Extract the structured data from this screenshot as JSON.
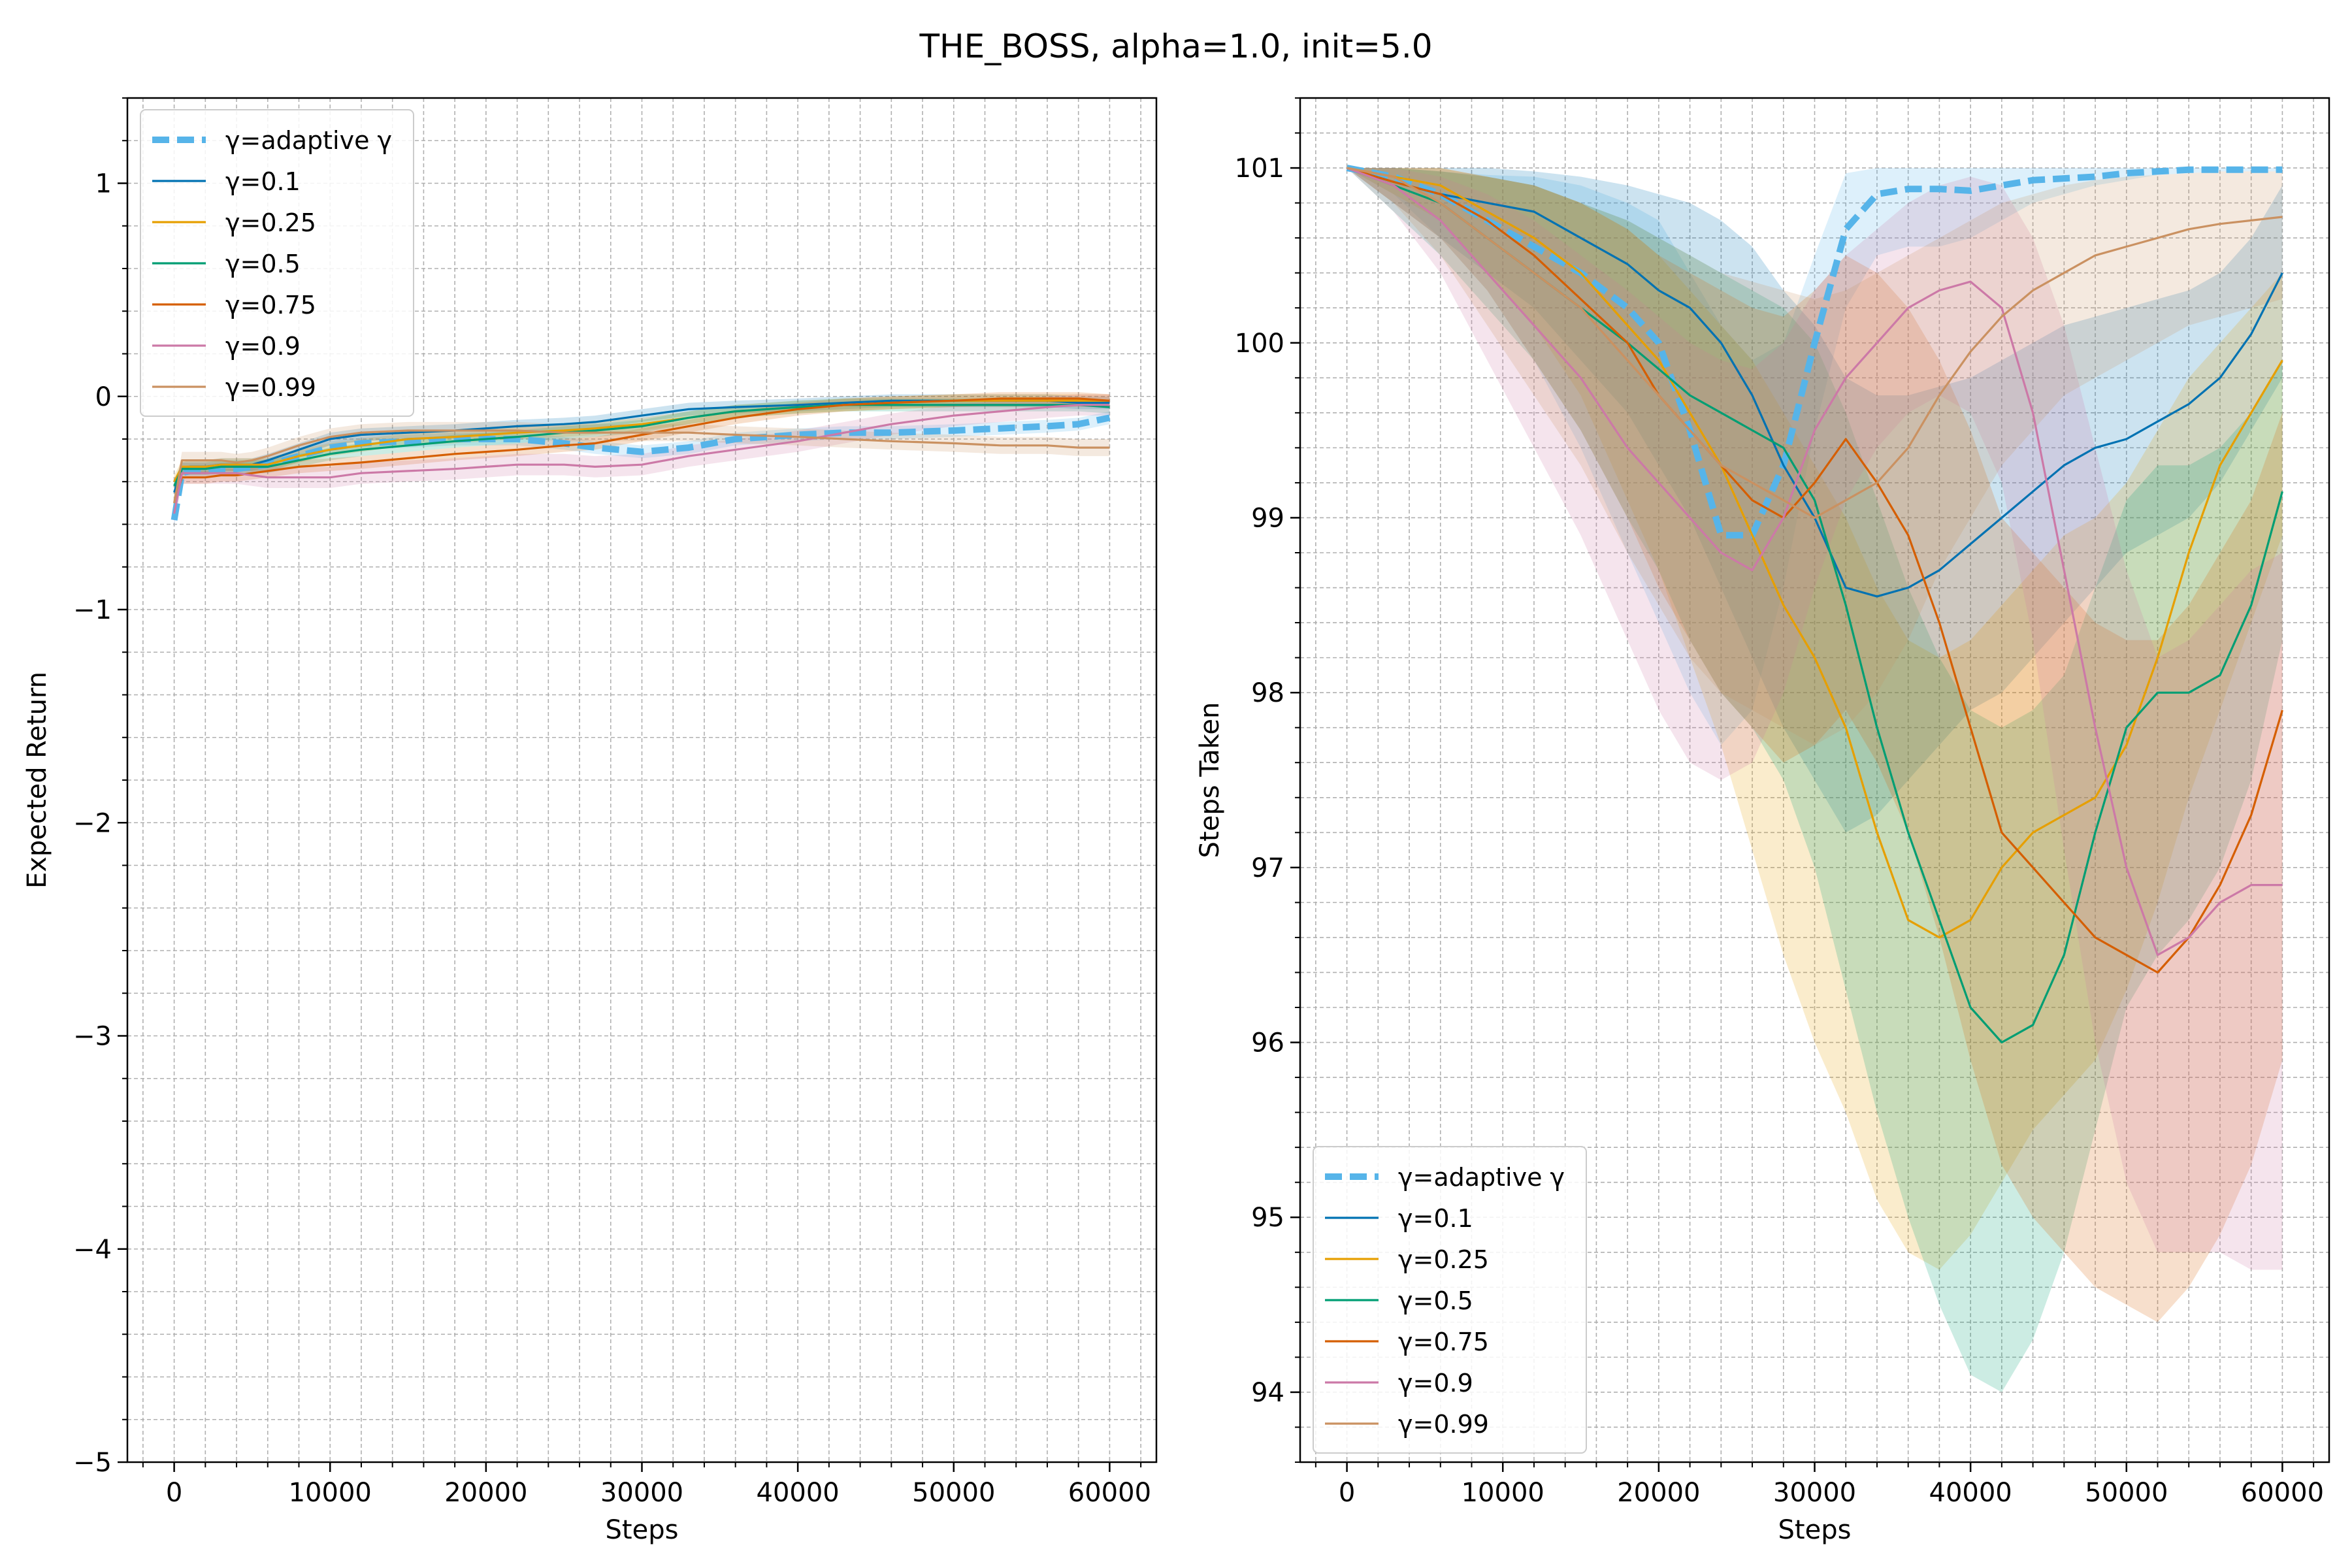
{
  "figure": {
    "title": "THE_BOSS, alpha=1.0, init=5.0"
  },
  "legend_entries": [
    "γ=adaptive γ",
    "γ=0.1",
    "γ=0.25",
    "γ=0.5",
    "γ=0.75",
    "γ=0.9",
    "γ=0.99"
  ],
  "colors": {
    "adaptive": "#56b4e9",
    "g0.1": "#0072b2",
    "g0.25": "#e69f00",
    "g0.5": "#009e73",
    "g0.75": "#d55e00",
    "g0.9": "#cc79a7",
    "g0.99": "#ca9161"
  },
  "chart_data": [
    {
      "type": "line",
      "title": "",
      "xlabel": "Steps",
      "ylabel": "Expected Return",
      "xlim": [
        -3000,
        63000
      ],
      "ylim": [
        -5,
        1.4
      ],
      "xticks": [
        0,
        10000,
        20000,
        30000,
        40000,
        50000,
        60000
      ],
      "yticks": [
        1,
        0,
        -1,
        -2,
        -3,
        -4,
        -5
      ],
      "ytick_labels": [
        "1",
        "0",
        "−1",
        "−2",
        "−3",
        "−4",
        "−5"
      ],
      "grid": true,
      "legend": "top-left",
      "x": [
        0,
        500,
        1000,
        2000,
        3000,
        4000,
        5000,
        6000,
        8000,
        10000,
        12000,
        15000,
        18000,
        20000,
        22000,
        25000,
        27000,
        30000,
        33000,
        36000,
        40000,
        43000,
        46000,
        50000,
        53000,
        56000,
        58000,
        60000
      ],
      "series": [
        {
          "name": "γ=adaptive γ",
          "key": "adaptive",
          "dashed": true,
          "band": 0.03,
          "values": [
            -0.58,
            -0.36,
            -0.35,
            -0.35,
            -0.34,
            -0.34,
            -0.33,
            -0.32,
            -0.28,
            -0.24,
            -0.22,
            -0.21,
            -0.2,
            -0.2,
            -0.2,
            -0.22,
            -0.24,
            -0.26,
            -0.24,
            -0.2,
            -0.18,
            -0.17,
            -0.17,
            -0.16,
            -0.15,
            -0.14,
            -0.13,
            -0.1
          ]
        },
        {
          "name": "γ=0.1",
          "key": "g0.1",
          "band": 0.03,
          "values": [
            -0.45,
            -0.34,
            -0.33,
            -0.33,
            -0.32,
            -0.32,
            -0.32,
            -0.3,
            -0.25,
            -0.2,
            -0.18,
            -0.17,
            -0.16,
            -0.15,
            -0.14,
            -0.13,
            -0.12,
            -0.09,
            -0.06,
            -0.05,
            -0.04,
            -0.03,
            -0.02,
            -0.02,
            -0.02,
            -0.02,
            -0.03,
            -0.03
          ]
        },
        {
          "name": "γ=0.25",
          "key": "g0.25",
          "band": 0.03,
          "values": [
            -0.4,
            -0.33,
            -0.33,
            -0.33,
            -0.32,
            -0.32,
            -0.32,
            -0.32,
            -0.28,
            -0.25,
            -0.23,
            -0.2,
            -0.19,
            -0.18,
            -0.17,
            -0.16,
            -0.15,
            -0.13,
            -0.1,
            -0.07,
            -0.05,
            -0.04,
            -0.03,
            -0.02,
            -0.02,
            -0.02,
            -0.02,
            -0.02
          ]
        },
        {
          "name": "γ=0.5",
          "key": "g0.5",
          "band": 0.03,
          "values": [
            -0.42,
            -0.34,
            -0.34,
            -0.34,
            -0.33,
            -0.33,
            -0.33,
            -0.33,
            -0.3,
            -0.27,
            -0.25,
            -0.23,
            -0.21,
            -0.2,
            -0.19,
            -0.17,
            -0.16,
            -0.14,
            -0.1,
            -0.07,
            -0.05,
            -0.04,
            -0.04,
            -0.04,
            -0.04,
            -0.04,
            -0.04,
            -0.05
          ]
        },
        {
          "name": "γ=0.75",
          "key": "g0.75",
          "band": 0.03,
          "values": [
            -0.5,
            -0.38,
            -0.38,
            -0.38,
            -0.37,
            -0.37,
            -0.36,
            -0.35,
            -0.33,
            -0.32,
            -0.31,
            -0.29,
            -0.27,
            -0.26,
            -0.25,
            -0.23,
            -0.22,
            -0.18,
            -0.14,
            -0.1,
            -0.06,
            -0.04,
            -0.03,
            -0.02,
            -0.01,
            -0.01,
            -0.01,
            -0.02
          ]
        },
        {
          "name": "γ=0.9",
          "key": "g0.9",
          "band": 0.05,
          "values": [
            -0.55,
            -0.36,
            -0.36,
            -0.36,
            -0.36,
            -0.36,
            -0.37,
            -0.38,
            -0.38,
            -0.38,
            -0.36,
            -0.35,
            -0.34,
            -0.33,
            -0.32,
            -0.32,
            -0.33,
            -0.32,
            -0.28,
            -0.25,
            -0.21,
            -0.17,
            -0.13,
            -0.09,
            -0.07,
            -0.05,
            -0.04,
            -0.04
          ]
        },
        {
          "name": "γ=0.99",
          "key": "g0.99",
          "band": 0.04,
          "values": [
            -0.5,
            -0.3,
            -0.3,
            -0.3,
            -0.3,
            -0.31,
            -0.3,
            -0.28,
            -0.23,
            -0.19,
            -0.17,
            -0.16,
            -0.16,
            -0.16,
            -0.16,
            -0.17,
            -0.17,
            -0.17,
            -0.17,
            -0.18,
            -0.19,
            -0.2,
            -0.21,
            -0.22,
            -0.23,
            -0.23,
            -0.24,
            -0.24
          ]
        }
      ]
    },
    {
      "type": "line",
      "title": "",
      "xlabel": "Steps",
      "ylabel": "Steps Taken",
      "xlim": [
        -3000,
        63000
      ],
      "ylim": [
        93.6,
        101.4
      ],
      "xticks": [
        0,
        10000,
        20000,
        30000,
        40000,
        50000,
        60000
      ],
      "yticks": [
        94,
        95,
        96,
        97,
        98,
        99,
        100,
        101
      ],
      "ytick_labels": [
        "94",
        "95",
        "96",
        "97",
        "98",
        "99",
        "100",
        "101"
      ],
      "grid": true,
      "legend": "bottom-left",
      "x": [
        0,
        3000,
        6000,
        9000,
        12000,
        15000,
        18000,
        20000,
        22000,
        24000,
        26000,
        28000,
        30000,
        32000,
        34000,
        36000,
        38000,
        40000,
        42000,
        44000,
        46000,
        48000,
        50000,
        52000,
        54000,
        56000,
        58000,
        60000
      ],
      "series": [
        {
          "name": "γ=adaptive γ",
          "key": "adaptive",
          "dashed": true,
          "values": [
            101,
            100.95,
            100.85,
            100.7,
            100.55,
            100.4,
            100.2,
            100.0,
            99.5,
            98.9,
            98.9,
            99.3,
            100.0,
            100.65,
            100.85,
            100.88,
            100.88,
            100.87,
            100.9,
            100.93,
            100.94,
            100.95,
            100.97,
            100.98,
            100.99,
            100.99,
            100.99,
            100.99
          ],
          "lower": [
            101,
            100.85,
            100.6,
            100.3,
            99.9,
            99.4,
            98.8,
            98.4,
            98.0,
            97.7,
            97.9,
            98.6,
            99.5,
            100.2,
            100.5,
            100.55,
            100.55,
            100.6,
            100.7,
            100.8,
            100.85,
            100.9,
            100.93,
            100.96,
            100.97,
            100.98,
            100.98,
            100.98
          ],
          "upper": [
            101,
            101.0,
            100.98,
            100.96,
            100.95,
            100.9,
            100.8,
            100.7,
            100.4,
            100.1,
            99.9,
            100.0,
            100.5,
            100.97,
            101.0,
            101.0,
            101.0,
            101.0,
            101.0,
            101.0,
            101.0,
            101.0,
            101.0,
            101.0,
            101.0,
            101.0,
            101.0,
            101.0
          ]
        },
        {
          "name": "γ=0.1",
          "key": "g0.1",
          "dashed": false,
          "values": [
            101,
            100.92,
            100.85,
            100.8,
            100.75,
            100.6,
            100.45,
            100.3,
            100.2,
            100.0,
            99.7,
            99.3,
            99.0,
            98.6,
            98.55,
            98.6,
            98.7,
            98.85,
            99.0,
            99.15,
            99.3,
            99.4,
            99.45,
            99.55,
            99.65,
            99.8,
            100.05,
            100.4
          ],
          "lower": [
            101,
            100.8,
            100.6,
            100.4,
            100.2,
            99.9,
            99.6,
            99.3,
            99.0,
            98.6,
            98.2,
            97.8,
            97.5,
            97.2,
            97.3,
            97.5,
            97.7,
            97.9,
            98.0,
            98.2,
            98.4,
            98.6,
            98.8,
            98.9,
            99.0,
            99.2,
            99.5,
            99.8
          ],
          "upper": [
            101,
            101.0,
            101.0,
            101.0,
            100.98,
            100.95,
            100.9,
            100.85,
            100.8,
            100.7,
            100.55,
            100.3,
            100.1,
            99.8,
            99.7,
            99.7,
            99.75,
            99.8,
            99.9,
            100.0,
            100.1,
            100.15,
            100.2,
            100.25,
            100.3,
            100.4,
            100.6,
            100.9
          ]
        },
        {
          "name": "γ=0.25",
          "key": "g0.25",
          "dashed": false,
          "values": [
            101,
            100.95,
            100.9,
            100.75,
            100.6,
            100.4,
            100.1,
            99.9,
            99.6,
            99.3,
            98.9,
            98.5,
            98.2,
            97.8,
            97.2,
            96.7,
            96.6,
            96.7,
            97.0,
            97.2,
            97.3,
            97.4,
            97.7,
            98.2,
            98.8,
            99.3,
            99.6,
            99.9
          ],
          "lower": [
            101,
            100.85,
            100.7,
            100.4,
            100.1,
            99.7,
            99.1,
            98.7,
            98.2,
            97.7,
            97.1,
            96.5,
            96.0,
            95.6,
            95.1,
            94.8,
            94.7,
            94.9,
            95.2,
            95.5,
            95.7,
            95.9,
            96.3,
            96.8,
            97.4,
            97.9,
            98.4,
            98.9
          ],
          "upper": [
            101,
            101.0,
            101.0,
            100.95,
            100.9,
            100.8,
            100.65,
            100.5,
            100.3,
            100.1,
            99.9,
            99.6,
            99.3,
            99.0,
            98.6,
            98.3,
            98.2,
            98.3,
            98.5,
            98.7,
            98.9,
            99.0,
            99.2,
            99.5,
            99.8,
            100.0,
            100.2,
            100.4
          ]
        },
        {
          "name": "γ=0.5",
          "key": "g0.5",
          "dashed": false,
          "values": [
            101,
            100.9,
            100.8,
            100.6,
            100.4,
            100.2,
            100.0,
            99.85,
            99.7,
            99.6,
            99.5,
            99.4,
            99.1,
            98.5,
            97.8,
            97.2,
            96.7,
            96.2,
            96.0,
            96.1,
            96.5,
            97.2,
            97.8,
            98.0,
            98.0,
            98.1,
            98.5,
            99.15
          ],
          "lower": [
            101,
            100.75,
            100.5,
            100.2,
            99.9,
            99.5,
            99.0,
            98.7,
            98.3,
            98.0,
            97.8,
            97.5,
            97.0,
            96.3,
            95.6,
            95.0,
            94.5,
            94.1,
            94.0,
            94.3,
            94.8,
            95.5,
            96.2,
            96.5,
            96.7,
            97.0,
            97.5,
            98.3
          ],
          "upper": [
            101,
            101.0,
            100.98,
            100.95,
            100.9,
            100.8,
            100.7,
            100.6,
            100.5,
            100.4,
            100.3,
            100.2,
            100.0,
            99.6,
            99.1,
            98.6,
            98.2,
            97.9,
            97.8,
            97.9,
            98.1,
            98.6,
            99.1,
            99.3,
            99.3,
            99.4,
            99.6,
            99.9
          ]
        },
        {
          "name": "γ=0.75",
          "key": "g0.75",
          "dashed": false,
          "values": [
            101,
            100.92,
            100.85,
            100.7,
            100.5,
            100.25,
            100.0,
            99.7,
            99.5,
            99.3,
            99.1,
            99.0,
            99.2,
            99.45,
            99.2,
            98.9,
            98.4,
            97.8,
            97.2,
            97.0,
            96.8,
            96.6,
            96.5,
            96.4,
            96.6,
            96.9,
            97.3,
            97.9
          ],
          "lower": [
            101,
            100.8,
            100.6,
            100.3,
            99.9,
            99.5,
            99.0,
            98.6,
            98.3,
            98.0,
            97.8,
            97.6,
            97.7,
            97.9,
            97.6,
            97.2,
            96.6,
            95.9,
            95.3,
            95.0,
            94.8,
            94.6,
            94.5,
            94.4,
            94.6,
            94.9,
            95.3,
            95.9
          ],
          "upper": [
            101,
            101.0,
            101.0,
            100.95,
            100.9,
            100.8,
            100.65,
            100.5,
            100.4,
            100.3,
            100.2,
            100.15,
            100.3,
            100.5,
            100.4,
            100.2,
            99.9,
            99.5,
            99.0,
            98.8,
            98.6,
            98.4,
            98.3,
            98.3,
            98.5,
            98.8,
            99.1,
            99.6
          ]
        },
        {
          "name": "γ=0.9",
          "key": "g0.9",
          "dashed": false,
          "values": [
            101,
            100.9,
            100.7,
            100.4,
            100.1,
            99.8,
            99.4,
            99.2,
            99.0,
            98.8,
            98.7,
            99.0,
            99.5,
            99.8,
            100.0,
            100.2,
            100.3,
            100.35,
            100.2,
            99.6,
            98.7,
            97.8,
            97.0,
            96.5,
            96.6,
            96.8,
            96.9,
            96.9
          ],
          "lower": [
            101,
            100.75,
            100.4,
            99.9,
            99.4,
            98.9,
            98.3,
            97.9,
            97.6,
            97.5,
            97.6,
            98.0,
            98.6,
            99.1,
            99.4,
            99.6,
            99.7,
            99.6,
            99.2,
            98.3,
            97.1,
            96.0,
            95.2,
            94.8,
            94.8,
            94.8,
            94.7,
            94.7
          ],
          "upper": [
            101,
            101.0,
            100.95,
            100.85,
            100.7,
            100.5,
            100.3,
            100.15,
            100.0,
            99.9,
            99.85,
            100.0,
            100.3,
            100.5,
            100.65,
            100.8,
            100.9,
            100.95,
            100.9,
            100.6,
            100.1,
            99.4,
            98.7,
            98.2,
            98.3,
            98.5,
            98.7,
            98.8
          ]
        },
        {
          "name": "γ=0.99",
          "key": "g0.99",
          "dashed": false,
          "values": [
            101,
            100.95,
            100.8,
            100.6,
            100.4,
            100.2,
            99.9,
            99.7,
            99.5,
            99.3,
            99.2,
            99.1,
            99.0,
            99.1,
            99.2,
            99.4,
            99.7,
            99.95,
            100.15,
            100.3,
            100.4,
            100.5,
            100.55,
            100.6,
            100.65,
            100.68,
            100.7,
            100.72
          ],
          "lower": [
            101,
            100.8,
            100.5,
            100.1,
            99.7,
            99.3,
            98.8,
            98.5,
            98.2,
            98.0,
            97.9,
            97.8,
            97.7,
            97.8,
            98.0,
            98.3,
            98.7,
            99.0,
            99.3,
            99.5,
            99.7,
            99.8,
            99.9,
            100.0,
            100.1,
            100.15,
            100.2,
            100.25
          ],
          "upper": [
            101,
            101.0,
            100.98,
            100.95,
            100.9,
            100.8,
            100.7,
            100.6,
            100.5,
            100.4,
            100.35,
            100.3,
            100.25,
            100.3,
            100.4,
            100.5,
            100.6,
            100.7,
            100.8,
            100.85,
            100.9,
            100.93,
            100.95,
            100.96,
            100.97,
            100.98,
            100.98,
            100.98
          ]
        }
      ]
    }
  ]
}
